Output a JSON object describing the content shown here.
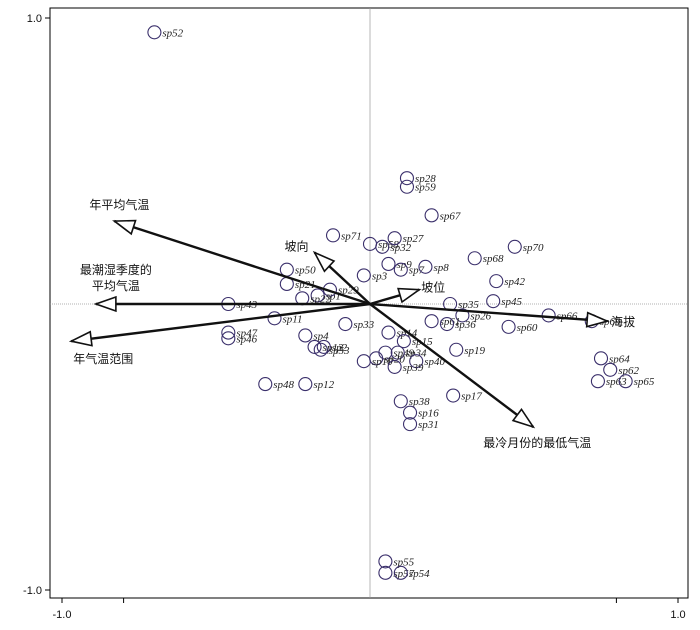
{
  "chart_data": {
    "type": "scatter",
    "title": "",
    "xlabel": "",
    "ylabel": "",
    "xlim": [
      -1.0,
      1.0
    ],
    "ylim": [
      -1.0,
      1.0
    ],
    "x_tick_labels": [
      "-1.0",
      "1.0"
    ],
    "y_tick_labels": [
      "1.0",
      "-1.0"
    ],
    "grid": false,
    "points": [
      {
        "name": "sp52",
        "x": -0.7,
        "y": 0.95
      },
      {
        "name": "sp28",
        "x": 0.12,
        "y": 0.44
      },
      {
        "name": "sp59",
        "x": 0.12,
        "y": 0.41
      },
      {
        "name": "sp67",
        "x": 0.2,
        "y": 0.31
      },
      {
        "name": "sp71",
        "x": -0.12,
        "y": 0.24
      },
      {
        "name": "sp58",
        "x": 0.0,
        "y": 0.21
      },
      {
        "name": "sp27",
        "x": 0.08,
        "y": 0.23
      },
      {
        "name": "sp32",
        "x": 0.04,
        "y": 0.2
      },
      {
        "name": "sp68",
        "x": 0.34,
        "y": 0.16
      },
      {
        "name": "sp70",
        "x": 0.47,
        "y": 0.2
      },
      {
        "name": "sp50",
        "x": -0.27,
        "y": 0.12
      },
      {
        "name": "sp3",
        "x": -0.02,
        "y": 0.1
      },
      {
        "name": "sp9",
        "x": 0.06,
        "y": 0.14
      },
      {
        "name": "sp7",
        "x": 0.1,
        "y": 0.12
      },
      {
        "name": "sp8",
        "x": 0.18,
        "y": 0.13
      },
      {
        "name": "sp42",
        "x": 0.41,
        "y": 0.08
      },
      {
        "name": "sp21",
        "x": -0.27,
        "y": 0.07
      },
      {
        "name": "sp1",
        "x": -0.17,
        "y": 0.03
      },
      {
        "name": "sp29",
        "x": -0.13,
        "y": 0.05
      },
      {
        "name": "sp43",
        "x": -0.46,
        "y": 0.0
      },
      {
        "name": "sp22",
        "x": -0.22,
        "y": 0.02
      },
      {
        "name": "sp35",
        "x": 0.26,
        "y": 0.0
      },
      {
        "name": "sp45",
        "x": 0.4,
        "y": 0.01
      },
      {
        "name": "sp66",
        "x": 0.58,
        "y": -0.04
      },
      {
        "name": "sp69",
        "x": 0.72,
        "y": -0.06
      },
      {
        "name": "sp26",
        "x": 0.3,
        "y": -0.04
      },
      {
        "name": "sp11",
        "x": -0.31,
        "y": -0.05
      },
      {
        "name": "sp33",
        "x": -0.08,
        "y": -0.07
      },
      {
        "name": "sp47",
        "x": -0.46,
        "y": -0.1
      },
      {
        "name": "sp61",
        "x": 0.2,
        "y": -0.06
      },
      {
        "name": "sp36",
        "x": 0.25,
        "y": -0.07
      },
      {
        "name": "sp60",
        "x": 0.45,
        "y": -0.08
      },
      {
        "name": "sp14",
        "x": 0.06,
        "y": -0.1
      },
      {
        "name": "sp4",
        "x": -0.21,
        "y": -0.11
      },
      {
        "name": "sp15",
        "x": 0.11,
        "y": -0.13
      },
      {
        "name": "sp46",
        "x": -0.46,
        "y": -0.12
      },
      {
        "name": "sp13",
        "x": -0.18,
        "y": -0.15
      },
      {
        "name": "sp2",
        "x": -0.15,
        "y": -0.15
      },
      {
        "name": "sp53",
        "x": -0.16,
        "y": -0.16
      },
      {
        "name": "sp19",
        "x": 0.28,
        "y": -0.16
      },
      {
        "name": "sp49",
        "x": 0.05,
        "y": -0.17
      },
      {
        "name": "sp34",
        "x": 0.09,
        "y": -0.17
      },
      {
        "name": "sp20",
        "x": 0.02,
        "y": -0.19
      },
      {
        "name": "sp10",
        "x": -0.02,
        "y": -0.2
      },
      {
        "name": "sp40",
        "x": 0.15,
        "y": -0.2
      },
      {
        "name": "sp39",
        "x": 0.08,
        "y": -0.22
      },
      {
        "name": "sp64",
        "x": 0.75,
        "y": -0.19
      },
      {
        "name": "sp62",
        "x": 0.78,
        "y": -0.23
      },
      {
        "name": "sp63",
        "x": 0.74,
        "y": -0.27
      },
      {
        "name": "sp65",
        "x": 0.83,
        "y": -0.27
      },
      {
        "name": "sp48",
        "x": -0.34,
        "y": -0.28
      },
      {
        "name": "sp12",
        "x": -0.21,
        "y": -0.28
      },
      {
        "name": "sp38",
        "x": 0.1,
        "y": -0.34
      },
      {
        "name": "sp17",
        "x": 0.27,
        "y": -0.32
      },
      {
        "name": "sp16",
        "x": 0.13,
        "y": -0.38
      },
      {
        "name": "sp31",
        "x": 0.13,
        "y": -0.42
      },
      {
        "name": "sp55",
        "x": 0.05,
        "y": -0.9
      },
      {
        "name": "sp57",
        "x": 0.05,
        "y": -0.94
      },
      {
        "name": "sp54",
        "x": 0.1,
        "y": -0.94
      }
    ],
    "vectors": [
      {
        "name": "年平均气温",
        "x": -0.83,
        "y": 0.29
      },
      {
        "name": "最潮湿季度的平均气温",
        "x": -0.89,
        "y": 0.0
      },
      {
        "name": "年气温范围",
        "x": -0.97,
        "y": -0.13
      },
      {
        "name": "坡向",
        "x": -0.18,
        "y": 0.18
      },
      {
        "name": "坡位",
        "x": 0.16,
        "y": 0.05
      },
      {
        "name": "海拔",
        "x": 0.77,
        "y": -0.06
      },
      {
        "name": "最冷月份的最低气温",
        "x": 0.53,
        "y": -0.43
      }
    ],
    "colors": {
      "point": "#3a2f6b",
      "vector": "#111111",
      "axis": "#999999"
    }
  }
}
